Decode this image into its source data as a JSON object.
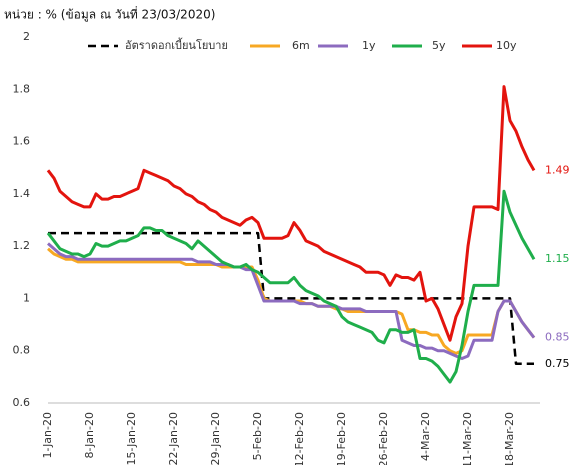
{
  "chart_data": {
    "type": "line",
    "title": "หน่วย : % (ข้อมูล ณ วันที่ 23/03/2020)",
    "categories": [
      "1-Jan-20",
      null,
      null,
      null,
      null,
      null,
      null,
      "8-Jan-20",
      null,
      null,
      null,
      null,
      null,
      null,
      "15-Jan-20",
      null,
      null,
      null,
      null,
      null,
      null,
      "22-Jan-20",
      null,
      null,
      null,
      null,
      null,
      null,
      "29-Jan-20",
      null,
      null,
      null,
      null,
      null,
      null,
      "5-Feb-20",
      null,
      null,
      null,
      null,
      null,
      null,
      "12-Feb-20",
      null,
      null,
      null,
      null,
      null,
      null,
      "19-Feb-20",
      null,
      null,
      null,
      null,
      null,
      null,
      "26-Feb-20",
      null,
      null,
      null,
      null,
      null,
      null,
      "4-Mar-20",
      null,
      null,
      null,
      null,
      null,
      null,
      "11-Mar-20",
      null,
      null,
      null,
      null,
      null,
      null,
      "18-Mar-20",
      null,
      null,
      null,
      null
    ],
    "series": [
      {
        "name": "อัตราดอกเบี้ยนโยบาย",
        "color": "#000000",
        "dashed": true,
        "label_last": true,
        "values": [
          1.25,
          1.25,
          1.25,
          1.25,
          1.25,
          1.25,
          1.25,
          1.25,
          1.25,
          1.25,
          1.25,
          1.25,
          1.25,
          1.25,
          1.25,
          1.25,
          1.25,
          1.25,
          1.25,
          1.25,
          1.25,
          1.25,
          1.25,
          1.25,
          1.25,
          1.25,
          1.25,
          1.25,
          1.25,
          1.25,
          1.25,
          1.25,
          1.25,
          1.25,
          1.25,
          1.25,
          1,
          1,
          1,
          1,
          1,
          1,
          1,
          1,
          1,
          1,
          1,
          1,
          1,
          1,
          1,
          1,
          1,
          1,
          1,
          1,
          1,
          1,
          1,
          1,
          1,
          1,
          1,
          1,
          1,
          1,
          1,
          1,
          1,
          1,
          1,
          1,
          1,
          1,
          1,
          1,
          1,
          1,
          0.75,
          0.75,
          0.75,
          0.75
        ]
      },
      {
        "name": "6m",
        "color": "#f7a823",
        "dashed": false,
        "label_last": false,
        "values": [
          1.19,
          1.17,
          1.16,
          1.15,
          1.15,
          1.14,
          1.14,
          1.14,
          1.14,
          1.14,
          1.14,
          1.14,
          1.14,
          1.14,
          1.14,
          1.14,
          1.14,
          1.14,
          1.14,
          1.14,
          1.14,
          1.14,
          1.14,
          1.13,
          1.13,
          1.13,
          1.13,
          1.13,
          1.13,
          1.12,
          1.12,
          1.12,
          1.12,
          1.12,
          1.12,
          1.07,
          1.0,
          0.99,
          0.99,
          0.99,
          0.99,
          0.99,
          0.99,
          0.98,
          0.98,
          0.97,
          0.97,
          0.97,
          0.96,
          0.96,
          0.95,
          0.95,
          0.95,
          0.95,
          0.95,
          0.95,
          0.95,
          0.95,
          0.95,
          0.94,
          0.88,
          0.88,
          0.87,
          0.87,
          0.86,
          0.86,
          0.82,
          0.8,
          0.79,
          0.8,
          0.86,
          0.86,
          0.86,
          0.86,
          0.86,
          0.95,
          0.99,
          0.99,
          0.95,
          0.91,
          0.88,
          0.85
        ]
      },
      {
        "name": "1y",
        "color": "#8c6bbf",
        "dashed": false,
        "label_last": true,
        "values": [
          1.21,
          1.19,
          1.17,
          1.16,
          1.16,
          1.15,
          1.15,
          1.15,
          1.15,
          1.15,
          1.15,
          1.15,
          1.15,
          1.15,
          1.15,
          1.15,
          1.15,
          1.15,
          1.15,
          1.15,
          1.15,
          1.15,
          1.15,
          1.15,
          1.15,
          1.14,
          1.14,
          1.14,
          1.13,
          1.13,
          1.13,
          1.12,
          1.12,
          1.11,
          1.11,
          1.05,
          0.99,
          0.99,
          0.99,
          0.99,
          0.99,
          0.99,
          0.98,
          0.98,
          0.98,
          0.97,
          0.97,
          0.97,
          0.97,
          0.96,
          0.96,
          0.96,
          0.96,
          0.95,
          0.95,
          0.95,
          0.95,
          0.95,
          0.95,
          0.84,
          0.83,
          0.82,
          0.82,
          0.81,
          0.81,
          0.8,
          0.8,
          0.79,
          0.78,
          0.77,
          0.78,
          0.84,
          0.84,
          0.84,
          0.84,
          0.95,
          0.99,
          0.99,
          0.95,
          0.91,
          0.88,
          0.85
        ]
      },
      {
        "name": "5y",
        "color": "#1fae4b",
        "dashed": false,
        "label_last": true,
        "values": [
          1.25,
          1.22,
          1.19,
          1.18,
          1.17,
          1.17,
          1.16,
          1.17,
          1.21,
          1.2,
          1.2,
          1.21,
          1.22,
          1.22,
          1.23,
          1.24,
          1.27,
          1.27,
          1.26,
          1.26,
          1.24,
          1.23,
          1.22,
          1.21,
          1.19,
          1.22,
          1.2,
          1.18,
          1.16,
          1.14,
          1.13,
          1.12,
          1.12,
          1.13,
          1.11,
          1.1,
          1.08,
          1.06,
          1.06,
          1.06,
          1.06,
          1.08,
          1.05,
          1.03,
          1.02,
          1.01,
          0.99,
          0.98,
          0.97,
          0.93,
          0.91,
          0.9,
          0.89,
          0.88,
          0.87,
          0.84,
          0.83,
          0.88,
          0.88,
          0.87,
          0.87,
          0.88,
          0.77,
          0.77,
          0.76,
          0.74,
          0.71,
          0.68,
          0.72,
          0.82,
          0.95,
          1.05,
          1.05,
          1.05,
          1.05,
          1.05,
          1.41,
          1.33,
          1.28,
          1.23,
          1.19,
          1.15
        ]
      },
      {
        "name": "10y",
        "color": "#e3140e",
        "dashed": false,
        "label_last": true,
        "values": [
          1.49,
          1.46,
          1.41,
          1.39,
          1.37,
          1.36,
          1.35,
          1.35,
          1.4,
          1.38,
          1.38,
          1.39,
          1.39,
          1.4,
          1.41,
          1.42,
          1.49,
          1.48,
          1.47,
          1.46,
          1.45,
          1.43,
          1.42,
          1.4,
          1.39,
          1.37,
          1.36,
          1.34,
          1.33,
          1.31,
          1.3,
          1.29,
          1.28,
          1.3,
          1.31,
          1.29,
          1.23,
          1.23,
          1.23,
          1.23,
          1.24,
          1.29,
          1.26,
          1.22,
          1.21,
          1.2,
          1.18,
          1.17,
          1.16,
          1.15,
          1.14,
          1.13,
          1.12,
          1.1,
          1.1,
          1.1,
          1.09,
          1.05,
          1.09,
          1.08,
          1.08,
          1.07,
          1.1,
          0.99,
          1.0,
          0.96,
          0.9,
          0.84,
          0.93,
          0.98,
          1.2,
          1.35,
          1.35,
          1.35,
          1.35,
          1.34,
          1.81,
          1.68,
          1.64,
          1.58,
          1.53,
          1.49
        ]
      }
    ],
    "ylim": [
      0.6,
      2
    ],
    "yticks": [
      0.6,
      0.8,
      1,
      1.2,
      1.4,
      1.6,
      1.8,
      2
    ],
    "grid": false,
    "legend": "top"
  }
}
